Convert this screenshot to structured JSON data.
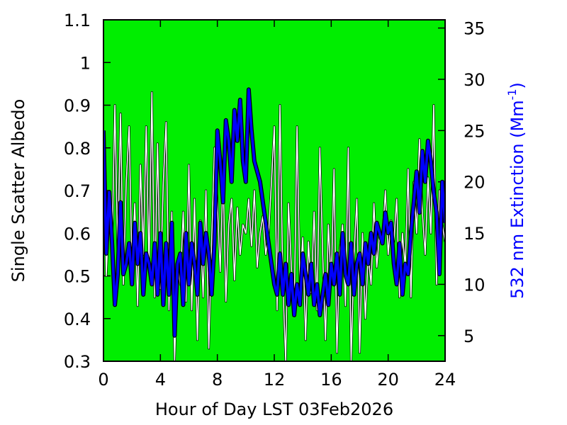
{
  "chart_data": {
    "type": "line",
    "title": "",
    "colors": {
      "plot_background": "#00ee00",
      "albedo_line": "#ffffff",
      "albedo_outline": "#000000",
      "extinction_line": "#0000ff",
      "extinction_outline": "#000000",
      "right_axis_label": "#0000ff"
    },
    "x_axis": {
      "label": "Hour of Day LST 03Feb2026",
      "range": [
        0,
        24
      ],
      "ticks": [
        0,
        4,
        8,
        12,
        16,
        20,
        24
      ],
      "tick_labels": [
        "0",
        "4",
        "8",
        "12",
        "16",
        "20",
        "24"
      ]
    },
    "y_axis_left": {
      "label": "Single Scatter Albedo",
      "range": [
        0.3,
        1.1
      ],
      "ticks": [
        0.3,
        0.4,
        0.5,
        0.6,
        0.7,
        0.8,
        0.9,
        1.0,
        1.1
      ],
      "tick_labels": [
        "0.3",
        "0.4",
        "0.5",
        "0.6",
        "0.7",
        "0.8",
        "0.9",
        "1",
        "1.1"
      ]
    },
    "y_axis_right": {
      "label_main": "532 nm Extinction (Mm",
      "label_sup": "-1",
      "label_tail": ")",
      "range": [
        2.5,
        35.8
      ],
      "ticks": [
        5,
        10,
        15,
        20,
        25,
        30,
        35
      ],
      "tick_labels": [
        "5",
        "10",
        "15",
        "20",
        "25",
        "30",
        "35"
      ]
    },
    "series": [
      {
        "axis": "left",
        "color": "#ffffff",
        "x": [
          0.0,
          0.2,
          0.4,
          0.6,
          0.8,
          1.0,
          1.2,
          1.4,
          1.6,
          1.8,
          2.0,
          2.2,
          2.4,
          2.6,
          2.8,
          3.0,
          3.2,
          3.4,
          3.6,
          3.8,
          4.0,
          4.2,
          4.4,
          4.6,
          4.8,
          5.0,
          5.2,
          5.4,
          5.6,
          5.8,
          6.0,
          6.2,
          6.4,
          6.6,
          6.8,
          7.0,
          7.2,
          7.4,
          7.6,
          7.8,
          8.0,
          8.2,
          8.4,
          8.6,
          8.8,
          9.0,
          9.2,
          9.4,
          9.6,
          9.8,
          10.0,
          10.2,
          10.4,
          10.6,
          10.8,
          11.0,
          11.2,
          11.4,
          11.6,
          11.8,
          12.0,
          12.2,
          12.4,
          12.6,
          12.8,
          13.0,
          13.2,
          13.4,
          13.6,
          13.8,
          14.0,
          14.2,
          14.4,
          14.6,
          14.8,
          15.0,
          15.2,
          15.4,
          15.6,
          15.8,
          16.0,
          16.2,
          16.4,
          16.6,
          16.8,
          17.0,
          17.2,
          17.4,
          17.6,
          17.8,
          18.0,
          18.2,
          18.4,
          18.6,
          18.8,
          19.0,
          19.2,
          19.4,
          19.6,
          19.8,
          20.0,
          20.2,
          20.4,
          20.6,
          20.8,
          21.0,
          21.2,
          21.4,
          21.6,
          21.8,
          22.0,
          22.2,
          22.4,
          22.6,
          22.8,
          23.0,
          23.2,
          23.4,
          23.6,
          23.8,
          24.0
        ],
        "values": [
          0.84,
          0.5,
          0.66,
          0.57,
          0.9,
          0.55,
          0.88,
          0.48,
          0.72,
          0.85,
          0.52,
          0.67,
          0.43,
          0.76,
          0.55,
          0.85,
          0.52,
          0.93,
          0.45,
          0.81,
          0.47,
          0.72,
          0.86,
          0.42,
          0.65,
          0.3,
          0.53,
          0.48,
          0.65,
          0.44,
          0.76,
          0.42,
          0.68,
          0.35,
          0.63,
          0.45,
          0.7,
          0.33,
          0.58,
          0.8,
          0.67,
          0.51,
          0.74,
          0.44,
          0.62,
          0.68,
          0.49,
          0.66,
          0.55,
          0.62,
          0.6,
          0.68,
          0.57,
          0.7,
          0.52,
          0.6,
          0.64,
          0.55,
          0.6,
          0.72,
          0.85,
          0.42,
          0.9,
          0.48,
          0.3,
          0.67,
          0.52,
          0.42,
          0.85,
          0.48,
          0.59,
          0.35,
          0.58,
          0.46,
          0.65,
          0.42,
          0.8,
          0.55,
          0.35,
          0.62,
          0.48,
          0.75,
          0.32,
          0.56,
          0.62,
          0.43,
          0.8,
          0.3,
          0.55,
          0.68,
          0.32,
          0.6,
          0.4,
          0.55,
          0.48,
          0.67,
          0.52,
          0.6,
          0.58,
          0.7,
          0.55,
          0.63,
          0.58,
          0.68,
          0.45,
          0.6,
          0.52,
          0.75,
          0.45,
          0.72,
          0.6,
          0.82,
          0.65,
          0.55,
          0.73,
          0.6,
          0.9,
          0.48,
          0.7,
          0.62,
          0.58
        ]
      },
      {
        "axis": "right",
        "color": "#0000ff",
        "x": [
          0.0,
          0.2,
          0.4,
          0.6,
          0.8,
          1.0,
          1.2,
          1.4,
          1.6,
          1.8,
          2.0,
          2.2,
          2.4,
          2.6,
          2.8,
          3.0,
          3.2,
          3.4,
          3.6,
          3.8,
          4.0,
          4.2,
          4.4,
          4.6,
          4.8,
          5.0,
          5.2,
          5.4,
          5.6,
          5.8,
          6.0,
          6.2,
          6.4,
          6.6,
          6.8,
          7.0,
          7.2,
          7.4,
          7.6,
          7.8,
          8.0,
          8.2,
          8.4,
          8.6,
          8.8,
          9.0,
          9.2,
          9.4,
          9.6,
          9.8,
          10.0,
          10.2,
          10.4,
          10.6,
          10.8,
          11.0,
          11.2,
          11.4,
          11.6,
          11.8,
          12.0,
          12.2,
          12.4,
          12.6,
          12.8,
          13.0,
          13.2,
          13.4,
          13.6,
          13.8,
          14.0,
          14.2,
          14.4,
          14.6,
          14.8,
          15.0,
          15.2,
          15.4,
          15.6,
          15.8,
          16.0,
          16.2,
          16.4,
          16.6,
          16.8,
          17.0,
          17.2,
          17.4,
          17.6,
          17.8,
          18.0,
          18.2,
          18.4,
          18.6,
          18.8,
          19.0,
          19.2,
          19.4,
          19.6,
          19.8,
          20.0,
          20.2,
          20.4,
          20.6,
          20.8,
          21.0,
          21.2,
          21.4,
          21.6,
          21.8,
          22.0,
          22.2,
          22.4,
          22.6,
          22.8,
          23.0,
          23.2,
          23.4,
          23.6,
          23.8,
          24.0
        ],
        "values": [
          25,
          13,
          19,
          14,
          8,
          11,
          18,
          11,
          12,
          14,
          10,
          16,
          12,
          15,
          9,
          13,
          12,
          10,
          14,
          9,
          15,
          8,
          14,
          9,
          16,
          5,
          12,
          13,
          8,
          15,
          10,
          14,
          12,
          9,
          16,
          12,
          15,
          13,
          9,
          14,
          25,
          22,
          18,
          26,
          24,
          20,
          27,
          24,
          28,
          22,
          20,
          29,
          25,
          22,
          21,
          20,
          18,
          16,
          14,
          12,
          10,
          9,
          13,
          9,
          12,
          8,
          11,
          7,
          10,
          8,
          13,
          11,
          9,
          12,
          8,
          10,
          7,
          9,
          11,
          8,
          12,
          10,
          13,
          9,
          15,
          11,
          10,
          14,
          9,
          12,
          13,
          10,
          14,
          12,
          15,
          13,
          16,
          15,
          14,
          17,
          15,
          16,
          12,
          10,
          14,
          9,
          12,
          11,
          15,
          18,
          21,
          17,
          23,
          20,
          24,
          22,
          19,
          17,
          11,
          20,
          16
        ]
      }
    ]
  }
}
